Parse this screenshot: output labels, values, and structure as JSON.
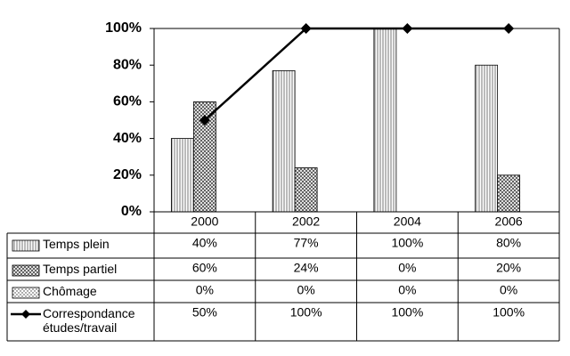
{
  "chart_data": {
    "type": "bar",
    "categories": [
      "2000",
      "2002",
      "2004",
      "2006"
    ],
    "series": [
      {
        "name": "Temps plein",
        "type": "bar",
        "color": "#000000",
        "values": [
          40,
          77,
          100,
          80
        ],
        "value_labels": [
          "40%",
          "77%",
          "100%",
          "80%"
        ]
      },
      {
        "name": "Temps partiel",
        "type": "bar",
        "color": "#000000",
        "values": [
          60,
          24,
          0,
          20
        ],
        "value_labels": [
          "60%",
          "24%",
          "0%",
          "20%"
        ]
      },
      {
        "name": "Chômage",
        "type": "bar",
        "color": "#000000",
        "values": [
          0,
          0,
          0,
          0
        ],
        "value_labels": [
          "0%",
          "0%",
          "0%",
          "0%"
        ]
      },
      {
        "name": "Correspondance études/travail",
        "type": "line",
        "color": "#000000",
        "values": [
          50,
          100,
          100,
          100
        ],
        "value_labels": [
          "50%",
          "100%",
          "100%",
          "100%"
        ]
      }
    ],
    "ylim": [
      0,
      100
    ],
    "yticks": [
      {
        "value": 0,
        "label": "0%"
      },
      {
        "value": 20,
        "label": "20%"
      },
      {
        "value": 40,
        "label": "40%"
      },
      {
        "value": 60,
        "label": "60%"
      },
      {
        "value": 80,
        "label": "80%"
      },
      {
        "value": 100,
        "label": "100%"
      }
    ],
    "grid": false
  }
}
